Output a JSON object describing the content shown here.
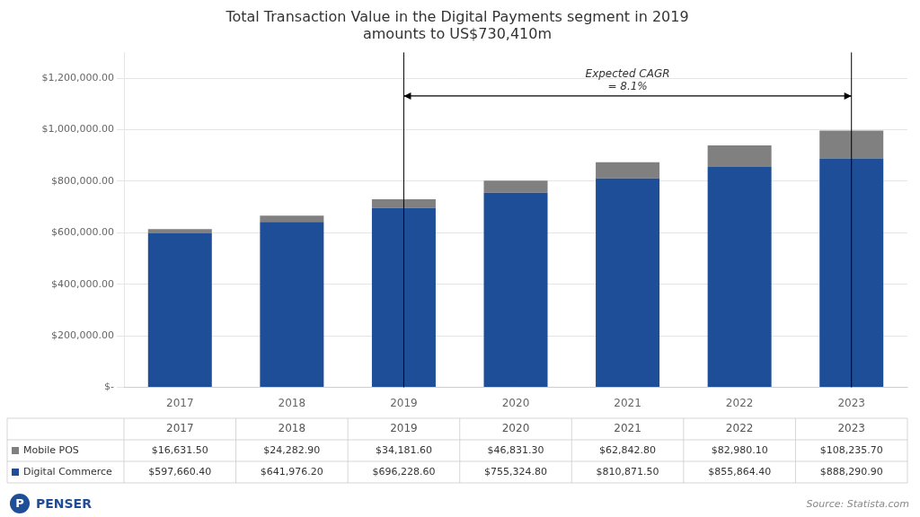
{
  "chart_data": {
    "type": "bar",
    "title": "Total Transaction Value in the Digital Payments segment in 2019\namounts to US$730,410m",
    "categories": [
      "2017",
      "2018",
      "2019",
      "2020",
      "2021",
      "2022",
      "2023"
    ],
    "series": [
      {
        "name": "Digital Commerce",
        "color": "#1F4E99",
        "values": [
          597660.4,
          641976.2,
          696228.6,
          755324.8,
          810871.5,
          855864.4,
          888290.9
        ],
        "value_labels": [
          "$597,660.40",
          "$641,976.20",
          "$696,228.60",
          "$755,324.80",
          "$810,871.50",
          "$855,864.40",
          "$888,290.90"
        ]
      },
      {
        "name": "Mobile POS",
        "color": "#808080",
        "values": [
          16631.5,
          24282.9,
          34181.6,
          46831.3,
          62842.8,
          82980.1,
          108235.7
        ],
        "value_labels": [
          "$16,631.50",
          "$24,282.90",
          "$34,181.60",
          "$46,831.30",
          "$62,842.80",
          "$82,980.10",
          "$108,235.70"
        ]
      }
    ],
    "stacked": true,
    "ylim": [
      0,
      1300000
    ],
    "yticks": [
      {
        "value": 0,
        "label": "$-"
      },
      {
        "value": 200000,
        "label": "$200,000.00"
      },
      {
        "value": 400000,
        "label": "$400,000.00"
      },
      {
        "value": 600000,
        "label": "$600,000.00"
      },
      {
        "value": 800000,
        "label": "$800,000.00"
      },
      {
        "value": 1000000,
        "label": "$1,000,000.00"
      },
      {
        "value": 1200000,
        "label": "$1,200,000.00"
      }
    ],
    "grid": "y",
    "annotations": [
      {
        "text": "Expected CAGR\n= 8.1%",
        "from": "2019",
        "to": "2023"
      }
    ],
    "source": "Source: Statista.com",
    "logo": {
      "mark": "P",
      "text": "PENSER",
      "color": "#1F4E99"
    }
  }
}
